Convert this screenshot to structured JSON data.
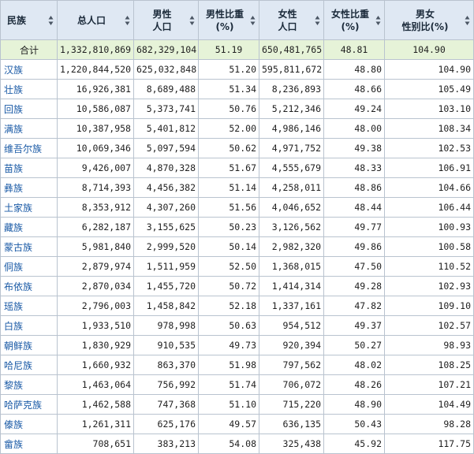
{
  "headers": [
    {
      "label": "民族"
    },
    {
      "label": "总人口"
    },
    {
      "label": "男性\n人口"
    },
    {
      "label": "男性比重\n(%)"
    },
    {
      "label": "女性\n人口"
    },
    {
      "label": "女性比重\n(%)"
    },
    {
      "label": "男女\n性别比(%)"
    }
  ],
  "rows": [
    {
      "name": "合计",
      "total": "1,332,810,869",
      "male": "682,329,104",
      "male_pct": "51.19",
      "female": "650,481,765",
      "female_pct": "48.81",
      "ratio": "104.90"
    },
    {
      "name": "汉族",
      "total": "1,220,844,520",
      "male": "625,032,848",
      "male_pct": "51.20",
      "female": "595,811,672",
      "female_pct": "48.80",
      "ratio": "104.90"
    },
    {
      "name": "壮族",
      "total": "16,926,381",
      "male": "8,689,488",
      "male_pct": "51.34",
      "female": "8,236,893",
      "female_pct": "48.66",
      "ratio": "105.49"
    },
    {
      "name": "回族",
      "total": "10,586,087",
      "male": "5,373,741",
      "male_pct": "50.76",
      "female": "5,212,346",
      "female_pct": "49.24",
      "ratio": "103.10"
    },
    {
      "name": "满族",
      "total": "10,387,958",
      "male": "5,401,812",
      "male_pct": "52.00",
      "female": "4,986,146",
      "female_pct": "48.00",
      "ratio": "108.34"
    },
    {
      "name": "维吾尔族",
      "total": "10,069,346",
      "male": "5,097,594",
      "male_pct": "50.62",
      "female": "4,971,752",
      "female_pct": "49.38",
      "ratio": "102.53"
    },
    {
      "name": "苗族",
      "total": "9,426,007",
      "male": "4,870,328",
      "male_pct": "51.67",
      "female": "4,555,679",
      "female_pct": "48.33",
      "ratio": "106.91"
    },
    {
      "name": "彝族",
      "total": "8,714,393",
      "male": "4,456,382",
      "male_pct": "51.14",
      "female": "4,258,011",
      "female_pct": "48.86",
      "ratio": "104.66"
    },
    {
      "name": "土家族",
      "total": "8,353,912",
      "male": "4,307,260",
      "male_pct": "51.56",
      "female": "4,046,652",
      "female_pct": "48.44",
      "ratio": "106.44"
    },
    {
      "name": "藏族",
      "total": "6,282,187",
      "male": "3,155,625",
      "male_pct": "50.23",
      "female": "3,126,562",
      "female_pct": "49.77",
      "ratio": "100.93"
    },
    {
      "name": "蒙古族",
      "total": "5,981,840",
      "male": "2,999,520",
      "male_pct": "50.14",
      "female": "2,982,320",
      "female_pct": "49.86",
      "ratio": "100.58"
    },
    {
      "name": "侗族",
      "total": "2,879,974",
      "male": "1,511,959",
      "male_pct": "52.50",
      "female": "1,368,015",
      "female_pct": "47.50",
      "ratio": "110.52"
    },
    {
      "name": "布依族",
      "total": "2,870,034",
      "male": "1,455,720",
      "male_pct": "50.72",
      "female": "1,414,314",
      "female_pct": "49.28",
      "ratio": "102.93"
    },
    {
      "name": "瑶族",
      "total": "2,796,003",
      "male": "1,458,842",
      "male_pct": "52.18",
      "female": "1,337,161",
      "female_pct": "47.82",
      "ratio": "109.10"
    },
    {
      "name": "白族",
      "total": "1,933,510",
      "male": "978,998",
      "male_pct": "50.63",
      "female": "954,512",
      "female_pct": "49.37",
      "ratio": "102.57"
    },
    {
      "name": "朝鲜族",
      "total": "1,830,929",
      "male": "910,535",
      "male_pct": "49.73",
      "female": "920,394",
      "female_pct": "50.27",
      "ratio": "98.93"
    },
    {
      "name": "哈尼族",
      "total": "1,660,932",
      "male": "863,370",
      "male_pct": "51.98",
      "female": "797,562",
      "female_pct": "48.02",
      "ratio": "108.25"
    },
    {
      "name": "黎族",
      "total": "1,463,064",
      "male": "756,992",
      "male_pct": "51.74",
      "female": "706,072",
      "female_pct": "48.26",
      "ratio": "107.21"
    },
    {
      "name": "哈萨克族",
      "total": "1,462,588",
      "male": "747,368",
      "male_pct": "51.10",
      "female": "715,220",
      "female_pct": "48.90",
      "ratio": "104.49"
    },
    {
      "name": "傣族",
      "total": "1,261,311",
      "male": "625,176",
      "male_pct": "49.57",
      "female": "636,135",
      "female_pct": "50.43",
      "ratio": "98.28"
    },
    {
      "name": "畲族",
      "total": "708,651",
      "male": "383,213",
      "male_pct": "54.08",
      "female": "325,438",
      "female_pct": "45.92",
      "ratio": "117.75"
    }
  ],
  "colors": {
    "header_bg": "#dfe8f3",
    "total_bg": "#e6f3d8",
    "link": "#1a5aa6",
    "border": "#b9c3cf"
  }
}
